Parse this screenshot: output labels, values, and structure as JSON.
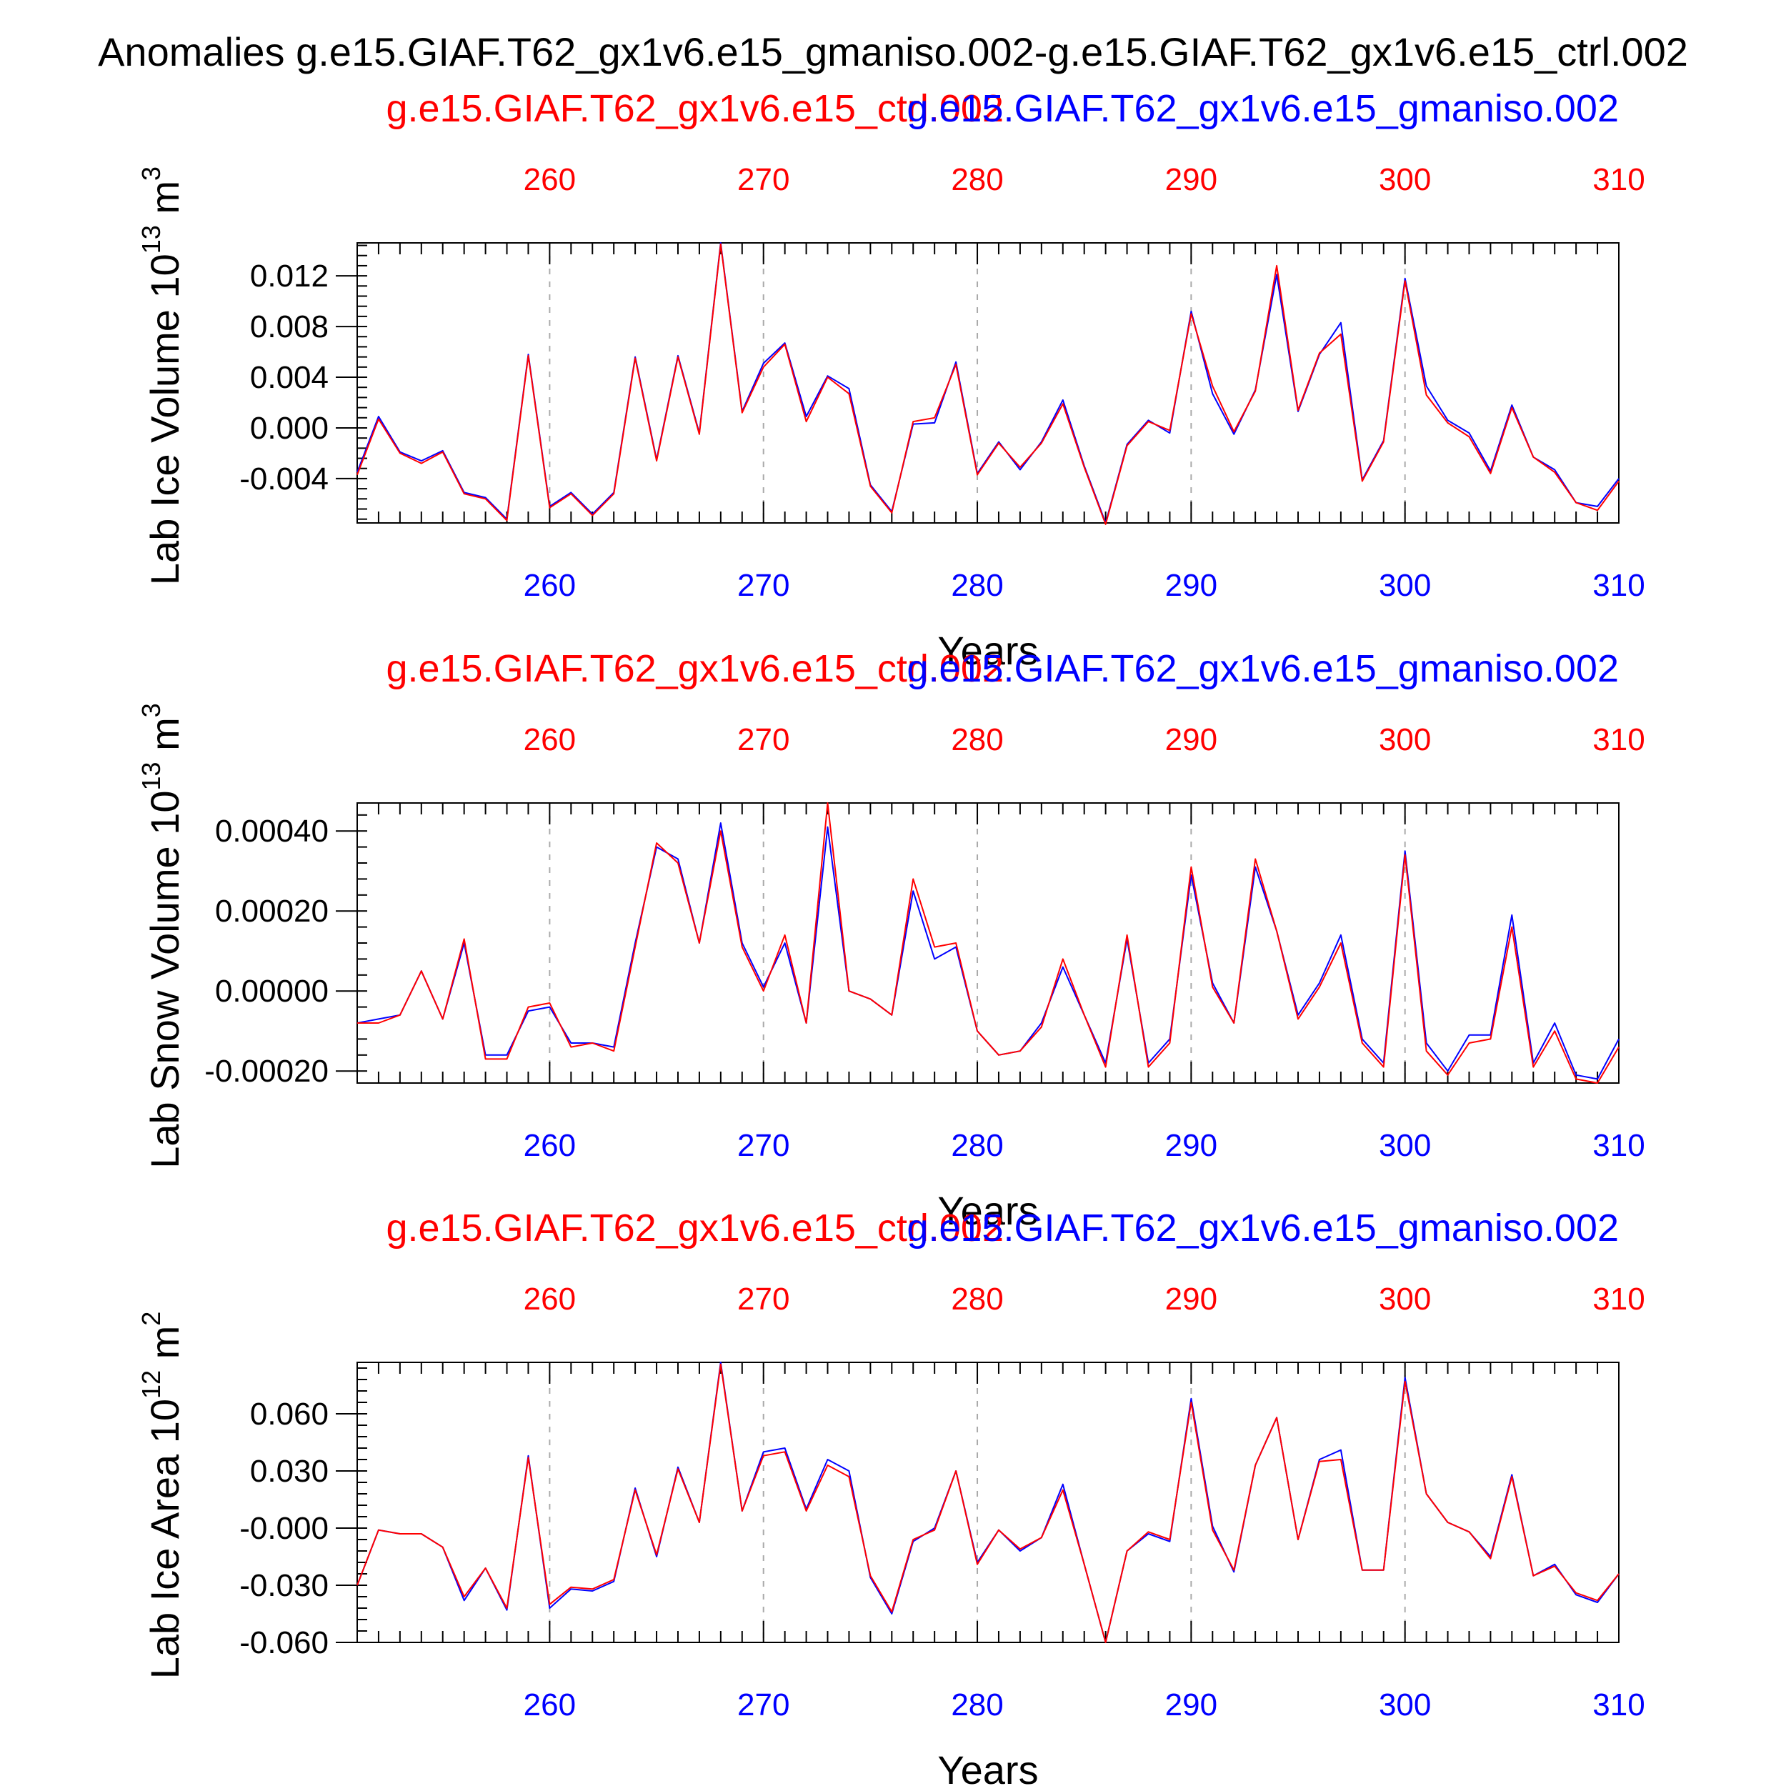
{
  "figure": {
    "title": "Anomalies g.e15.GIAF.T62_gx1v6.e15_gmaniso.002-g.e15.GIAF.T62_gx1v6.e15_ctrl.002",
    "colors": {
      "run_a": "#0000ff",
      "run_b": "#ff0000",
      "text": "#000000"
    }
  },
  "chart_data": [
    {
      "type": "line",
      "name": "lab-ice-volume",
      "ylabel": "Lab Ice Volume 10",
      "yunit_exp": "13",
      "yunit_base": "m",
      "yunit_pow": "3",
      "xlabel": "Years",
      "xlim": [
        251,
        310
      ],
      "ylim": [
        -0.0075,
        0.0146
      ],
      "xticks": [
        260,
        270,
        280,
        290,
        300,
        310
      ],
      "yticks": [
        -0.004,
        0.0,
        0.004,
        0.008,
        0.012
      ],
      "ytick_labels": [
        "-0.004",
        "0.000",
        "0.004",
        "0.008",
        "0.012"
      ],
      "top_label_red": "g.e15.GIAF.T62_gx1v6.e15_ctrl.002",
      "top_label_blue": "g.e15.GIAF.T62_gx1v6.e15_gmaniso.002",
      "years": [
        251,
        252,
        253,
        254,
        255,
        256,
        257,
        258,
        259,
        260,
        261,
        262,
        263,
        264,
        265,
        266,
        267,
        268,
        269,
        270,
        271,
        272,
        273,
        274,
        275,
        276,
        277,
        278,
        279,
        280,
        281,
        282,
        283,
        284,
        285,
        286,
        287,
        288,
        289,
        290,
        291,
        292,
        293,
        294,
        295,
        296,
        297,
        298,
        299,
        300,
        301,
        302,
        303,
        304,
        305,
        306,
        307,
        308,
        309,
        310
      ],
      "series": [
        {
          "name": "g.e15.GIAF.T62_gx1v6.e15_gmaniso.002",
          "color": "#0000ff",
          "values": [
            -0.0035,
            0.0009,
            -0.0019,
            -0.0026,
            -0.0018,
            -0.0051,
            -0.0055,
            -0.0072,
            0.0058,
            -0.0062,
            -0.0051,
            -0.0068,
            -0.0051,
            0.0056,
            -0.0025,
            0.0057,
            -0.0004,
            0.0146,
            0.0013,
            0.0051,
            0.0067,
            0.0009,
            0.0041,
            0.0031,
            -0.0045,
            -0.0066,
            0.0003,
            0.0004,
            0.0052,
            -0.0036,
            -0.0011,
            -0.0033,
            -0.0011,
            0.0022,
            -0.003,
            -0.0075,
            -0.0013,
            0.0006,
            -0.0004,
            0.0092,
            0.0027,
            -0.0005,
            0.003,
            0.0121,
            0.0013,
            0.0058,
            0.0083,
            -0.0041,
            -0.001,
            0.0118,
            0.0033,
            0.0006,
            -0.0004,
            -0.0034,
            0.0018,
            -0.0023,
            -0.0033,
            -0.0059,
            -0.0062,
            -0.004
          ]
        },
        {
          "name": "g.e15.GIAF.T62_gx1v6.e15_ctrl.002",
          "color": "#ff0000",
          "values": [
            -0.0037,
            0.0007,
            -0.002,
            -0.0028,
            -0.0019,
            -0.0052,
            -0.0056,
            -0.0073,
            0.0057,
            -0.0063,
            -0.0052,
            -0.0069,
            -0.0052,
            0.0055,
            -0.0026,
            0.0056,
            -0.0005,
            0.0145,
            0.0012,
            0.0048,
            0.0066,
            0.0005,
            0.004,
            0.0027,
            -0.0046,
            -0.0067,
            0.0005,
            0.0008,
            0.005,
            -0.0037,
            -0.0012,
            -0.0031,
            -0.0012,
            0.0019,
            -0.0031,
            -0.0076,
            -0.0014,
            0.0005,
            -0.0002,
            0.009,
            0.0033,
            -0.0003,
            0.0029,
            0.0128,
            0.0014,
            0.0059,
            0.0074,
            -0.0042,
            -0.0011,
            0.0116,
            0.0026,
            0.0004,
            -0.0007,
            -0.0036,
            0.0016,
            -0.0023,
            -0.0035,
            -0.0059,
            -0.0065,
            -0.0042
          ]
        }
      ]
    },
    {
      "type": "line",
      "name": "lab-snow-volume",
      "ylabel": "Lab Snow Volume 10",
      "yunit_exp": "13",
      "yunit_base": "m",
      "yunit_pow": "3",
      "xlabel": "Years",
      "xlim": [
        251,
        310
      ],
      "ylim": [
        -0.00023,
        0.00047
      ],
      "xticks": [
        260,
        270,
        280,
        290,
        300,
        310
      ],
      "yticks": [
        -0.0002,
        0.0,
        0.0002,
        0.0004
      ],
      "ytick_labels": [
        "-0.00020",
        "0.00000",
        "0.00020",
        "0.00040"
      ],
      "top_label_red": "g.e15.GIAF.T62_gx1v6.e15_ctrl.002",
      "top_label_blue": "g.e15.GIAF.T62_gx1v6.e15_gmaniso.002",
      "years": [
        251,
        252,
        253,
        254,
        255,
        256,
        257,
        258,
        259,
        260,
        261,
        262,
        263,
        264,
        265,
        266,
        267,
        268,
        269,
        270,
        271,
        272,
        273,
        274,
        275,
        276,
        277,
        278,
        279,
        280,
        281,
        282,
        283,
        284,
        285,
        286,
        287,
        288,
        289,
        290,
        291,
        292,
        293,
        294,
        295,
        296,
        297,
        298,
        299,
        300,
        301,
        302,
        303,
        304,
        305,
        306,
        307,
        308,
        309,
        310
      ],
      "series": [
        {
          "name": "g.e15.GIAF.T62_gx1v6.e15_gmaniso.002",
          "color": "#0000ff",
          "values": [
            -8e-05,
            -7e-05,
            -6e-05,
            5e-05,
            -7e-05,
            0.00012,
            -0.00016,
            -0.00016,
            -5e-05,
            -4e-05,
            -0.00013,
            -0.00013,
            -0.00014,
            0.00012,
            0.00036,
            0.00033,
            0.00012,
            0.00042,
            0.00012,
            1e-05,
            0.00012,
            -8e-05,
            0.00041,
            0.0,
            -2e-05,
            -6e-05,
            0.00025,
            8e-05,
            0.00011,
            -0.0001,
            -0.00016,
            -0.00015,
            -8e-05,
            6e-05,
            -6e-05,
            -0.00018,
            0.00013,
            -0.00018,
            -0.00012,
            0.00029,
            2e-05,
            -8e-05,
            0.00031,
            0.00015,
            -6e-05,
            2e-05,
            0.00014,
            -0.00012,
            -0.00018,
            0.00035,
            -0.00013,
            -0.0002,
            -0.00011,
            -0.00011,
            0.00019,
            -0.00018,
            -8e-05,
            -0.00021,
            -0.00022,
            -0.00012
          ]
        },
        {
          "name": "g.e15.GIAF.T62_gx1v6.e15_ctrl.002",
          "color": "#ff0000",
          "values": [
            -8e-05,
            -8e-05,
            -6e-05,
            5e-05,
            -7e-05,
            0.00013,
            -0.00017,
            -0.00017,
            -4e-05,
            -3e-05,
            -0.00014,
            -0.00013,
            -0.00015,
            0.00011,
            0.00037,
            0.00032,
            0.00012,
            0.0004,
            0.00011,
            0.0,
            0.00014,
            -8e-05,
            0.00047,
            0.0,
            -2e-05,
            -6e-05,
            0.00028,
            0.00011,
            0.00012,
            -0.0001,
            -0.00016,
            -0.00015,
            -9e-05,
            8e-05,
            -6e-05,
            -0.00019,
            0.00014,
            -0.00019,
            -0.00013,
            0.00031,
            1e-05,
            -8e-05,
            0.00033,
            0.00015,
            -7e-05,
            1e-05,
            0.00012,
            -0.00013,
            -0.00019,
            0.00034,
            -0.00015,
            -0.00021,
            -0.00013,
            -0.00012,
            0.00016,
            -0.00019,
            -0.0001,
            -0.00022,
            -0.00023,
            -0.00014
          ]
        }
      ]
    },
    {
      "type": "line",
      "name": "lab-ice-area",
      "ylabel": "Lab Ice Area 10",
      "yunit_exp": "12",
      "yunit_base": "m",
      "yunit_pow": "2",
      "xlabel": "Years",
      "xlim": [
        251,
        310
      ],
      "ylim": [
        -0.06,
        0.087
      ],
      "xticks": [
        260,
        270,
        280,
        290,
        300,
        310
      ],
      "yticks": [
        -0.06,
        -0.03,
        0.0,
        0.03,
        0.06
      ],
      "ytick_labels": [
        "-0.060",
        "-0.030",
        "-0.000",
        "0.030",
        "0.060"
      ],
      "top_label_red": "g.e15.GIAF.T62_gx1v6.e15_ctrl.002",
      "top_label_blue": "g.e15.GIAF.T62_gx1v6.e15_gmaniso.002",
      "years": [
        251,
        252,
        253,
        254,
        255,
        256,
        257,
        258,
        259,
        260,
        261,
        262,
        263,
        264,
        265,
        266,
        267,
        268,
        269,
        270,
        271,
        272,
        273,
        274,
        275,
        276,
        277,
        278,
        279,
        280,
        281,
        282,
        283,
        284,
        285,
        286,
        287,
        288,
        289,
        290,
        291,
        292,
        293,
        294,
        295,
        296,
        297,
        298,
        299,
        300,
        301,
        302,
        303,
        304,
        305,
        306,
        307,
        308,
        309,
        310
      ],
      "series": [
        {
          "name": "g.e15.GIAF.T62_gx1v6.e15_gmaniso.002",
          "color": "#0000ff",
          "values": [
            -0.03,
            -0.001,
            -0.003,
            -0.003,
            -0.01,
            -0.038,
            -0.021,
            -0.043,
            0.038,
            -0.042,
            -0.032,
            -0.033,
            -0.028,
            0.021,
            -0.015,
            0.032,
            0.003,
            0.087,
            0.009,
            0.04,
            0.042,
            0.01,
            0.036,
            0.03,
            -0.026,
            -0.045,
            -0.007,
            0.0,
            0.03,
            -0.018,
            -0.001,
            -0.012,
            -0.005,
            0.023,
            -0.019,
            -0.06,
            -0.012,
            -0.003,
            -0.007,
            0.068,
            0.001,
            -0.023,
            0.033,
            0.058,
            -0.006,
            0.036,
            0.041,
            -0.022,
            -0.022,
            0.079,
            0.018,
            0.003,
            -0.002,
            -0.015,
            0.028,
            -0.025,
            -0.019,
            -0.035,
            -0.039,
            -0.024
          ]
        },
        {
          "name": "g.e15.GIAF.T62_gx1v6.e15_ctrl.002",
          "color": "#ff0000",
          "values": [
            -0.03,
            -0.001,
            -0.003,
            -0.003,
            -0.01,
            -0.036,
            -0.021,
            -0.042,
            0.037,
            -0.04,
            -0.031,
            -0.032,
            -0.027,
            0.02,
            -0.014,
            0.031,
            0.003,
            0.086,
            0.009,
            0.038,
            0.04,
            0.009,
            0.033,
            0.027,
            -0.025,
            -0.044,
            -0.006,
            -0.001,
            0.03,
            -0.019,
            -0.001,
            -0.011,
            -0.005,
            0.02,
            -0.019,
            -0.06,
            -0.012,
            -0.002,
            -0.006,
            0.066,
            -0.001,
            -0.022,
            0.033,
            0.058,
            -0.006,
            0.035,
            0.036,
            -0.022,
            -0.022,
            0.077,
            0.018,
            0.003,
            -0.002,
            -0.016,
            0.027,
            -0.025,
            -0.02,
            -0.034,
            -0.038,
            -0.024
          ]
        }
      ]
    }
  ]
}
